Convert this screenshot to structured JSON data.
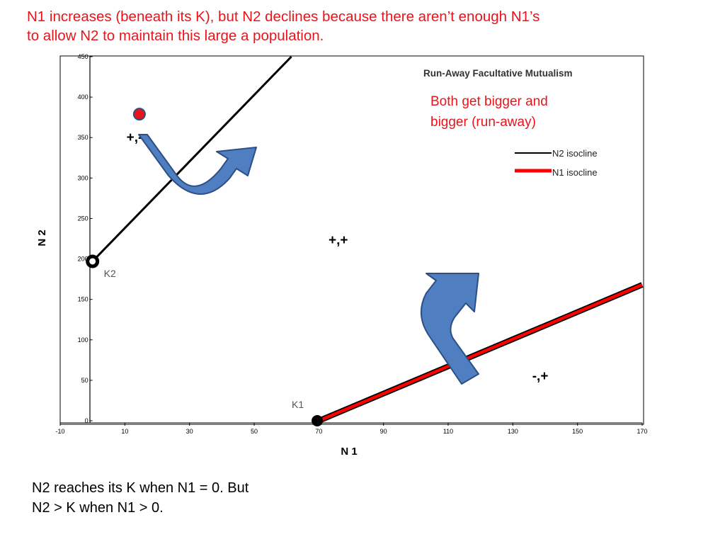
{
  "captions": {
    "top_line1": "N1 increases (beneath its K), but N2 declines because there aren’t enough N1’s",
    "top_line2": "to allow N2 to maintain this large a population.",
    "bottom_line1": "N2 reaches its K when N1 = 0.  But",
    "bottom_line2": "N2 > K when N1 > 0."
  },
  "chart_data": {
    "type": "line",
    "title": "Run-Away Facultative Mutualism",
    "xlabel": "N 1",
    "ylabel": "N 2",
    "xlim": [
      -10,
      170
    ],
    "ylim": [
      0,
      450
    ],
    "x_ticks": [
      -10,
      10,
      30,
      50,
      70,
      90,
      110,
      130,
      150,
      170
    ],
    "y_ticks": [
      0,
      50,
      100,
      150,
      200,
      250,
      300,
      350,
      400,
      450
    ],
    "grid": false,
    "legend_position": "right",
    "series": [
      {
        "name": "N2 isocline",
        "color": "#000000",
        "x": [
          0,
          61.5
        ],
        "y": [
          197,
          450
        ]
      },
      {
        "name": "N1 isocline",
        "color": "#ff0000",
        "x": [
          70,
          170
        ],
        "y": [
          0,
          168
        ]
      }
    ],
    "equilibrium_points": [
      {
        "label": "K2",
        "x": 0,
        "y": 197
      },
      {
        "label": "K1",
        "x": 69.5,
        "y": 0
      }
    ],
    "state_point": {
      "x": 14.5,
      "y": 379,
      "color": "#e8141b"
    },
    "region_labels": [
      {
        "text": "+,-",
        "x": 10.5,
        "y": 345
      },
      {
        "text": "+,+",
        "x": 73,
        "y": 218
      },
      {
        "text": "-,+",
        "x": 136,
        "y": 50
      }
    ],
    "annotation": {
      "line1": "Both get bigger and",
      "line2": "bigger (run-away)",
      "color": "#e8141b"
    },
    "arrow_color": "#4f7fc0"
  }
}
